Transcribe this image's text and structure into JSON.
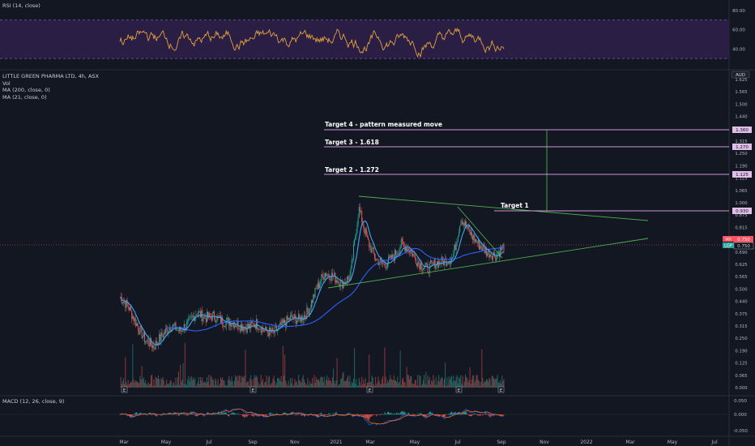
{
  "panes": {
    "rsi": {
      "label": "RSI (14, close)",
      "ticks": [
        "80.00",
        "60.00",
        "40.00"
      ],
      "upper_band": 70,
      "lower_band": 30,
      "colors": {
        "line": "#e0a040",
        "band": "#2a1e45",
        "band_line": "#7e57c2"
      }
    },
    "price": {
      "legend": [
        "LITTLE GREEN PHARMA LTD, 4h, ASX",
        "Vol",
        "MA (200, close, 0)",
        "MA (21, close, 0)"
      ],
      "currency_badge": "AUD",
      "ticks": [
        "1.625",
        "1.565",
        "1.500",
        "1.440",
        "1.375",
        "1.315",
        "1.250",
        "1.190",
        "1.125",
        "1.065",
        "1.000",
        "0.875",
        "0.815",
        "0.750",
        "0.690",
        "0.625",
        "0.565",
        "0.500",
        "0.440",
        "0.375",
        "0.315",
        "0.250",
        "0.190",
        "0.125",
        "0.065",
        "0.000"
      ],
      "price_badge": "0.750",
      "badge_tags": [
        "Vol",
        "LGP"
      ],
      "colors": {
        "up": "#26a69a",
        "down": "#ef5350",
        "ma_short": "#42a5f5",
        "ma_long": "#2962ff",
        "trendline": "#4caf50",
        "target": "#ce93d8"
      }
    },
    "macd": {
      "label": "MACD (12, 26, close, 9)",
      "ticks": [
        "0.050",
        "0.000",
        "-0.050"
      ]
    }
  },
  "annotations": {
    "target4": {
      "label": "Target 4 - pattern measured move",
      "price_label": "1.360"
    },
    "target3": {
      "label": "Target 3 - 1.618",
      "price_label": "1.270"
    },
    "target2": {
      "label": "Target 2 - 1.272",
      "price_label": "1.125"
    },
    "target1": {
      "label": "Target 1",
      "price_label": "0.930"
    }
  },
  "x_axis_labels": [
    "Mar",
    "May",
    "Jul",
    "Sep",
    "Nov",
    "2021",
    "Mar",
    "May",
    "Jul",
    "Sep",
    "Nov",
    "2022",
    "Mar",
    "May",
    "Jul"
  ],
  "event_markers": [
    "E",
    "E",
    "E",
    "E",
    "E"
  ],
  "chart_data": {
    "type": "line",
    "title": "LITTLE GREEN PHARMA LTD, 4h, ASX",
    "price_ylim": [
      0,
      1.625
    ],
    "rsi_ylim": [
      20,
      85
    ],
    "macd_ylim": [
      -0.06,
      0.06
    ],
    "series": [
      {
        "name": "MA (21, close, 0)",
        "note": ""
      },
      {
        "name": "MA (200, close, 0)",
        "note": ""
      }
    ],
    "close": [
      0.48,
      0.43,
      0.33,
      0.25,
      0.22,
      0.28,
      0.33,
      0.3,
      0.34,
      0.4,
      0.37,
      0.38,
      0.35,
      0.35,
      0.33,
      0.32,
      0.34,
      0.3,
      0.29,
      0.33,
      0.37,
      0.36,
      0.4,
      0.52,
      0.61,
      0.59,
      0.55,
      0.59,
      0.95,
      0.78,
      0.68,
      0.65,
      0.69,
      0.76,
      0.73,
      0.66,
      0.63,
      0.66,
      0.67,
      0.69,
      0.9,
      0.82,
      0.76,
      0.72,
      0.7,
      0.75
    ],
    "target_levels": [
      1.36,
      1.27,
      1.125,
      0.93
    ],
    "current_price": 0.75
  }
}
